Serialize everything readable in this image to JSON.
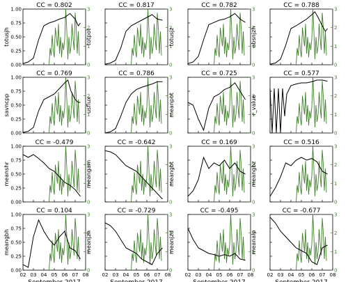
{
  "chart_data": {
    "type": "line",
    "x_axis": {
      "ticks": [
        "02",
        "03",
        "04",
        "05",
        "06",
        "07",
        "08"
      ],
      "xlabel": "September 2017"
    },
    "left_axis": {
      "ylim": [
        0,
        1.0
      ],
      "ticks": [
        "0.00",
        "0.25",
        "0.50",
        "0.75",
        "1.00"
      ]
    },
    "right_axis": {
      "ylim": [
        0,
        3
      ],
      "ticks": [
        "0",
        "1",
        "2",
        "3"
      ],
      "color": "#3f7f2a"
    },
    "colors": {
      "parameter": "#000000",
      "flare": "#3f7f2a"
    },
    "green_series": {
      "x": [
        4.5,
        4.6,
        4.7,
        4.8,
        4.9,
        5.0,
        5.1,
        5.2,
        5.3,
        5.4,
        5.5,
        5.6,
        5.7,
        5.8,
        5.9,
        6.0,
        6.1,
        6.2,
        6.3,
        6.4,
        6.5,
        6.6,
        6.7,
        6.8,
        6.9,
        7.0,
        7.1,
        7.2,
        7.3,
        7.4
      ],
      "values": [
        0,
        0.9,
        0.5,
        1.6,
        0.8,
        0.4,
        2.0,
        1.5,
        1.0,
        2.2,
        0.6,
        1.5,
        0.4,
        1.2,
        0.8,
        1.4,
        3.0,
        1.8,
        0.3,
        1.5,
        0.6,
        1.0,
        2.2,
        1.4,
        0.8,
        2.8,
        2.0,
        0.6,
        1.8,
        0.5
      ]
    },
    "panels": [
      {
        "label": "totusjh",
        "cc": "CC = 0.802",
        "x": [
          2,
          2.5,
          3,
          3.5,
          4,
          4.5,
          5,
          5.5,
          6,
          6.5,
          7,
          7.3,
          7.5
        ],
        "values": [
          0.02,
          0.05,
          0.12,
          0.45,
          0.7,
          0.75,
          0.78,
          0.82,
          0.85,
          0.92,
          0.82,
          0.7,
          0.75
        ]
      },
      {
        "label": "totpot",
        "cc": "CC = 0.817",
        "x": [
          2,
          2.5,
          3,
          3.5,
          4,
          4.5,
          5,
          5.5,
          6,
          6.5,
          7,
          7.5
        ],
        "values": [
          0.01,
          0.03,
          0.08,
          0.3,
          0.6,
          0.7,
          0.75,
          0.8,
          0.85,
          0.9,
          0.82,
          0.8
        ]
      },
      {
        "label": "totusjz",
        "cc": "CC = 0.782",
        "x": [
          2,
          2.5,
          3,
          3.5,
          4,
          4.5,
          5,
          5.5,
          6,
          6.5,
          7,
          7.5
        ],
        "values": [
          0.02,
          0.05,
          0.15,
          0.45,
          0.72,
          0.76,
          0.8,
          0.82,
          0.86,
          0.92,
          0.82,
          0.76
        ]
      },
      {
        "label": "absnjzh",
        "cc": "CC = 0.788",
        "x": [
          2,
          2.5,
          3,
          3.5,
          4,
          4.5,
          5,
          5.5,
          6,
          6.3,
          6.6,
          7,
          7.3,
          7.5
        ],
        "values": [
          0.01,
          0.03,
          0.1,
          0.35,
          0.65,
          0.7,
          0.76,
          0.82,
          0.9,
          0.95,
          0.85,
          0.7,
          0.6,
          0.65
        ]
      },
      {
        "label": "savncpp",
        "cc": "CC = 0.769",
        "x": [
          2,
          2.5,
          3,
          3.5,
          4,
          4.5,
          5,
          5.5,
          6,
          6.3,
          6.6,
          7,
          7.3,
          7.5
        ],
        "values": [
          0.01,
          0.03,
          0.1,
          0.4,
          0.6,
          0.65,
          0.7,
          0.8,
          0.9,
          0.95,
          0.75,
          0.6,
          0.55,
          0.55
        ]
      },
      {
        "label": "usflux",
        "cc": "CC = 0.786",
        "x": [
          2,
          2.5,
          3,
          3.5,
          4,
          4.5,
          5,
          5.5,
          6,
          6.5,
          7,
          7.5
        ],
        "values": [
          0.0,
          0.02,
          0.08,
          0.3,
          0.55,
          0.7,
          0.78,
          0.82,
          0.85,
          0.88,
          0.92,
          0.92
        ]
      },
      {
        "label": "meanpot",
        "cc": "CC = 0.725",
        "x": [
          2,
          2.5,
          3,
          3.5,
          4,
          4.5,
          5,
          5.5,
          6,
          6.5,
          7,
          7.5
        ],
        "values": [
          0.55,
          0.5,
          0.25,
          0.05,
          0.45,
          0.65,
          0.7,
          0.78,
          0.82,
          0.9,
          0.75,
          0.6
        ]
      },
      {
        "label": "r_value",
        "cc": "CC = 0.577",
        "x": [
          2,
          2.2,
          2.4,
          2.6,
          2.8,
          3.0,
          3.2,
          3.4,
          3.6,
          4,
          4.5,
          5,
          5.5,
          6,
          6.5,
          7,
          7.5
        ],
        "values": [
          0.8,
          0.0,
          0.8,
          0.0,
          0.8,
          0.0,
          0.8,
          0.3,
          0.7,
          0.85,
          0.88,
          0.9,
          0.9,
          0.92,
          0.95,
          0.95,
          0.93
        ]
      },
      {
        "label": "meanshr",
        "cc": "CC = -0.479",
        "x": [
          2,
          2.5,
          3,
          3.5,
          4,
          4.5,
          5,
          5.5,
          6,
          6.5,
          7,
          7.5
        ],
        "values": [
          0.85,
          0.8,
          0.85,
          0.78,
          0.7,
          0.6,
          0.55,
          0.45,
          0.35,
          0.3,
          0.22,
          0.1
        ]
      },
      {
        "label": "meangam",
        "cc": "CC = -0.642",
        "x": [
          2,
          2.5,
          3,
          3.5,
          4,
          4.5,
          5,
          5.5,
          6,
          6.5,
          7,
          7.5
        ],
        "values": [
          0.92,
          0.9,
          0.85,
          0.75,
          0.65,
          0.6,
          0.55,
          0.45,
          0.35,
          0.25,
          0.15,
          0.05
        ]
      },
      {
        "label": "meangbt",
        "cc": "CC = 0.169",
        "x": [
          2,
          2.5,
          3,
          3.5,
          4,
          4.5,
          5,
          5.5,
          6,
          6.5,
          7,
          7.5
        ],
        "values": [
          0.1,
          0.2,
          0.4,
          0.8,
          0.6,
          0.7,
          0.65,
          0.75,
          0.6,
          0.7,
          0.55,
          0.5
        ]
      },
      {
        "label": "meangbz",
        "cc": "CC = 0.516",
        "x": [
          2,
          2.5,
          3,
          3.5,
          4,
          4.5,
          5,
          5.5,
          6,
          6.5,
          7,
          7.5
        ],
        "values": [
          0.1,
          0.25,
          0.45,
          0.7,
          0.65,
          0.75,
          0.8,
          0.75,
          0.78,
          0.72,
          0.55,
          0.5
        ]
      },
      {
        "label": "meangbh",
        "cc": "CC = 0.104",
        "x": [
          2,
          2.5,
          3,
          3.5,
          4,
          4.5,
          5,
          5.5,
          6,
          6.5,
          7,
          7.5
        ],
        "values": [
          0.1,
          0.05,
          0.6,
          0.9,
          0.7,
          0.55,
          0.45,
          0.6,
          0.7,
          0.4,
          0.35,
          0.2
        ]
      },
      {
        "label": "meanjzh",
        "cc": "CC = -0.729",
        "x": [
          2,
          2.5,
          3,
          3.5,
          4,
          4.5,
          5,
          5.5,
          6,
          6.5,
          7,
          7.5
        ],
        "values": [
          0.85,
          0.8,
          0.7,
          0.55,
          0.4,
          0.35,
          0.3,
          0.2,
          0.15,
          0.1,
          0.3,
          0.4
        ]
      },
      {
        "label": "meanjzd",
        "cc": "CC = -0.495",
        "x": [
          2,
          2.5,
          3,
          3.5,
          4,
          4.5,
          5,
          5.5,
          6,
          6.5,
          7,
          7.5
        ],
        "values": [
          0.75,
          0.55,
          0.4,
          0.35,
          0.3,
          0.28,
          0.25,
          0.28,
          0.25,
          0.3,
          0.2,
          0.18
        ]
      },
      {
        "label": "meanalp",
        "cc": "CC = -0.677",
        "x": [
          2,
          2.5,
          3,
          3.5,
          4,
          4.5,
          5,
          5.5,
          6,
          6.5,
          7,
          7.5
        ],
        "values": [
          0.95,
          0.85,
          0.7,
          0.6,
          0.5,
          0.4,
          0.35,
          0.3,
          0.15,
          0.1,
          0.4,
          0.45
        ]
      }
    ]
  }
}
